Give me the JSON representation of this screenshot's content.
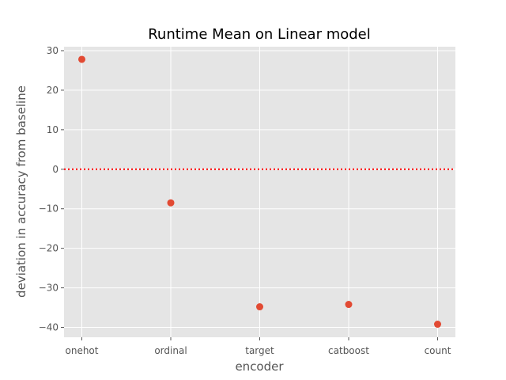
{
  "chart_data": {
    "type": "scatter",
    "title": "Runtime Mean on Linear model",
    "xlabel": "encoder",
    "ylabel": "deviation in accuracy from baseline",
    "categories": [
      "onehot",
      "ordinal",
      "target",
      "catboost",
      "count"
    ],
    "values": [
      27.8,
      -8.5,
      -34.8,
      -34.2,
      -39.2
    ],
    "ylim": [
      -42.5,
      31
    ],
    "yticks": [
      30,
      20,
      10,
      0,
      -10,
      -20,
      -30,
      -40
    ],
    "ytick_labels": [
      "30",
      "20",
      "10",
      "0",
      "−10",
      "−20",
      "−30",
      "−40"
    ],
    "reference_line": {
      "y": 0,
      "style": "dotted",
      "color": "#ff0000"
    },
    "grid": true,
    "colors": {
      "background": "#e5e5e5",
      "grid": "#ffffff",
      "marker": "#e24a33",
      "text": "#555555"
    }
  }
}
